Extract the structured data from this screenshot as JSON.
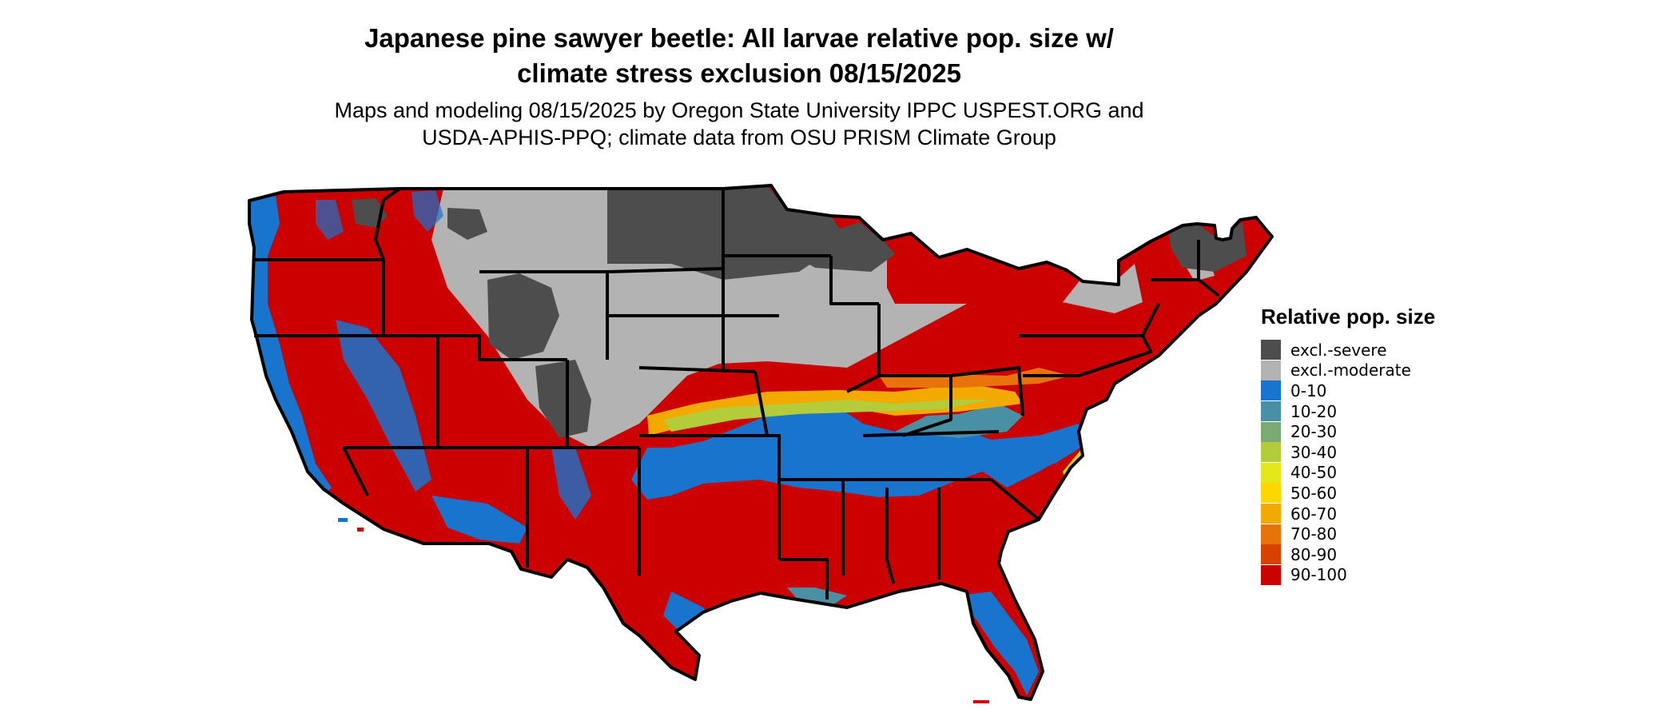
{
  "title_line1": "Japanese pine sawyer beetle: All larvae relative pop. size w/",
  "title_line2": "climate stress exclusion 08/15/2025",
  "subtitle_line1": "Maps and modeling 08/15/2025 by Oregon State University IPPC USPEST.ORG and",
  "subtitle_line2": "USDA-APHIS-PPQ; climate data from OSU PRISM Climate Group",
  "legend": {
    "title": "Relative pop. size",
    "items": [
      {
        "label": "excl.-severe",
        "color": "#4d4d4d"
      },
      {
        "label": "excl.-moderate",
        "color": "#b3b3b3"
      },
      {
        "label": "0-10",
        "color": "#1874cd"
      },
      {
        "label": "10-20",
        "color": "#4a90a4"
      },
      {
        "label": "20-30",
        "color": "#7bab72"
      },
      {
        "label": "30-40",
        "color": "#b4cc3a"
      },
      {
        "label": "40-50",
        "color": "#e3e81a"
      },
      {
        "label": "50-60",
        "color": "#ffd700"
      },
      {
        "label": "60-70",
        "color": "#f2a900"
      },
      {
        "label": "70-80",
        "color": "#e8730a"
      },
      {
        "label": "80-90",
        "color": "#d94100"
      },
      {
        "label": "90-100",
        "color": "#cd0000"
      }
    ]
  }
}
